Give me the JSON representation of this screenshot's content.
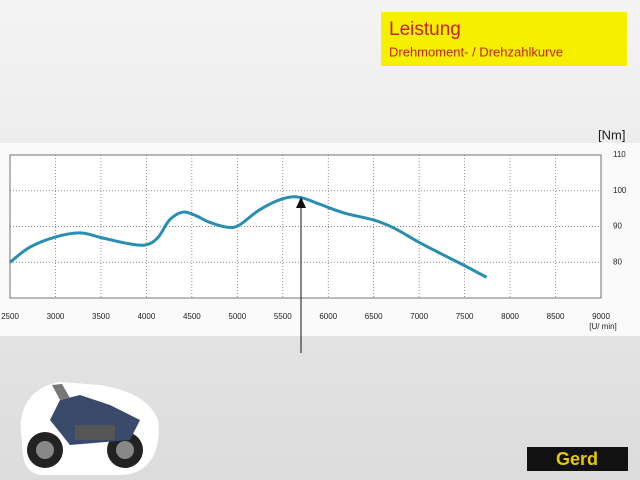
{
  "chart_data": {
    "type": "line",
    "title": "Leistung",
    "subtitle": "Drehmoment- / Drehzahlkurve",
    "y_label": "[Nm]",
    "x_label": "[U/ min]",
    "color": "#2a8db2",
    "grid": true,
    "x": [
      2500,
      2719,
      2993,
      3267,
      3487,
      3761,
      3980,
      4123,
      4254,
      4397,
      4529,
      4693,
      4890,
      5022,
      5241,
      5493,
      5680,
      5899,
      6173,
      6502,
      6721,
      6996,
      7270,
      7489,
      7741
    ],
    "values": [
      80,
      84.2,
      87,
      88.2,
      87,
      85.4,
      84.8,
      86.8,
      91.8,
      94,
      93.2,
      91.2,
      89.8,
      90.4,
      94.6,
      97.7,
      98.2,
      96.3,
      93.8,
      91.8,
      89.6,
      85.6,
      82,
      79.2,
      75.8
    ],
    "xlim": [
      2500,
      9000
    ],
    "xticks": [
      2500,
      3000,
      3500,
      4000,
      4500,
      5000,
      5500,
      6000,
      6500,
      7000,
      7500,
      8000,
      8500,
      9000
    ],
    "ylim": [
      70,
      110
    ],
    "yticks": [
      80,
      90,
      100,
      110
    ]
  },
  "logo": "Gerd"
}
